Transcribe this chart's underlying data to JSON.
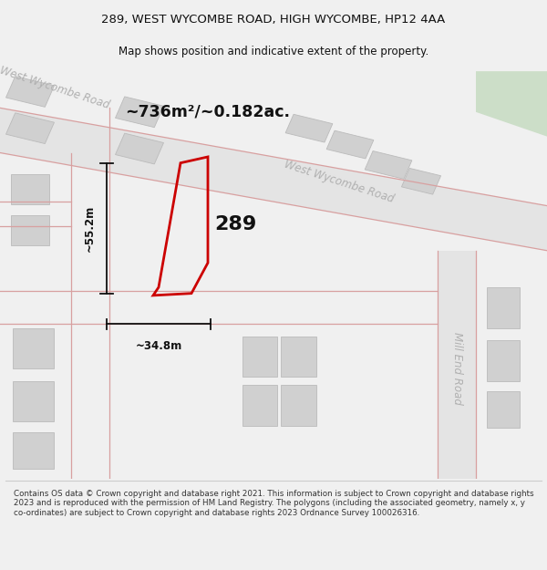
{
  "title_line1": "289, WEST WYCOMBE ROAD, HIGH WYCOMBE, HP12 4AA",
  "title_line2": "Map shows position and indicative extent of the property.",
  "area_text": "~736m²/~0.182ac.",
  "property_number": "289",
  "dim_height": "~55.2m",
  "dim_width": "~34.8m",
  "road_label_nw": "West Wycombe Road",
  "road_label_ne": "West Wycombe Road",
  "road_label_mill": "Mill End Road",
  "footer_text": "Contains OS data © Crown copyright and database right 2021. This information is subject to Crown copyright and database rights 2023 and is reproduced with the permission of HM Land Registry. The polygons (including the associated geometry, namely x, y co-ordinates) are subject to Crown copyright and database rights 2023 Ordnance Survey 100026316.",
  "bg_color": "#f0f0f0",
  "map_bg": "#f2f2f2",
  "road_fill": "#e4e4e4",
  "road_stroke": "#d8a0a0",
  "building_fill": "#d0d0d0",
  "building_stroke": "#bbbbbb",
  "green_fill": "#ccdec8",
  "property_stroke": "#cc0000",
  "dim_color": "#111111",
  "title_color": "#111111",
  "footer_color": "#333333",
  "road_label_color": "#b0b0b0"
}
